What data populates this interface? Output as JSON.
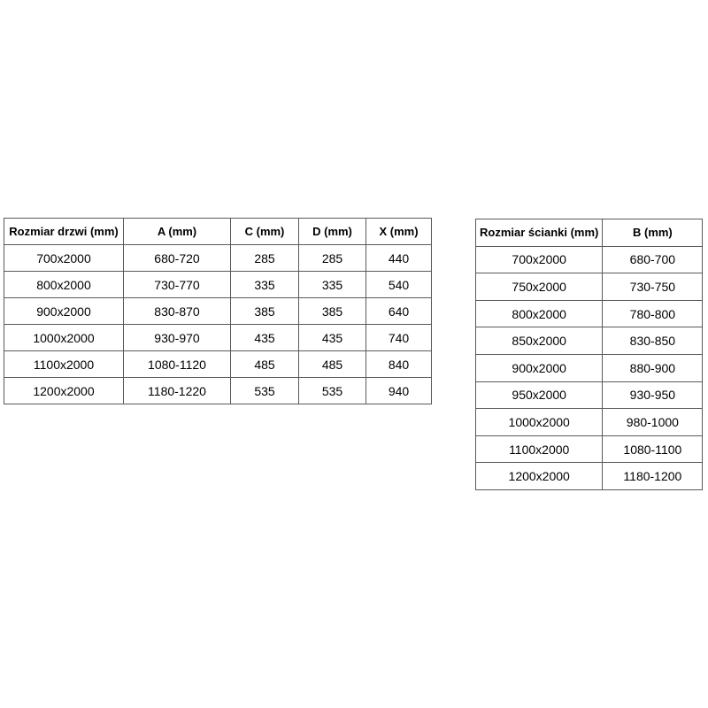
{
  "colors": {
    "border": "#595959",
    "text": "#000000",
    "background": "#ffffff"
  },
  "tables": {
    "doors": {
      "name": "door-sizes",
      "headers": [
        "Rozmiar drzwi (mm)",
        "A (mm)",
        "C (mm)",
        "D (mm)",
        "X (mm)"
      ],
      "rows": [
        [
          "700x2000",
          "680-720",
          "285",
          "285",
          "440"
        ],
        [
          "800x2000",
          "730-770",
          "335",
          "335",
          "540"
        ],
        [
          "900x2000",
          "830-870",
          "385",
          "385",
          "640"
        ],
        [
          "1000x2000",
          "930-970",
          "435",
          "435",
          "740"
        ],
        [
          "1100x2000",
          "1080-1120",
          "485",
          "485",
          "840"
        ],
        [
          "1200x2000",
          "1180-1220",
          "535",
          "535",
          "940"
        ]
      ]
    },
    "walls": {
      "name": "wall-sizes",
      "headers": [
        "Rozmiar ścianki (mm)",
        "B (mm)"
      ],
      "rows": [
        [
          "700x2000",
          "680-700"
        ],
        [
          "750x2000",
          "730-750"
        ],
        [
          "800x2000",
          "780-800"
        ],
        [
          "850x2000",
          "830-850"
        ],
        [
          "900x2000",
          "880-900"
        ],
        [
          "950x2000",
          "930-950"
        ],
        [
          "1000x2000",
          "980-1000"
        ],
        [
          "1100x2000",
          "1080-1100"
        ],
        [
          "1200x2000",
          "1180-1200"
        ]
      ]
    }
  }
}
